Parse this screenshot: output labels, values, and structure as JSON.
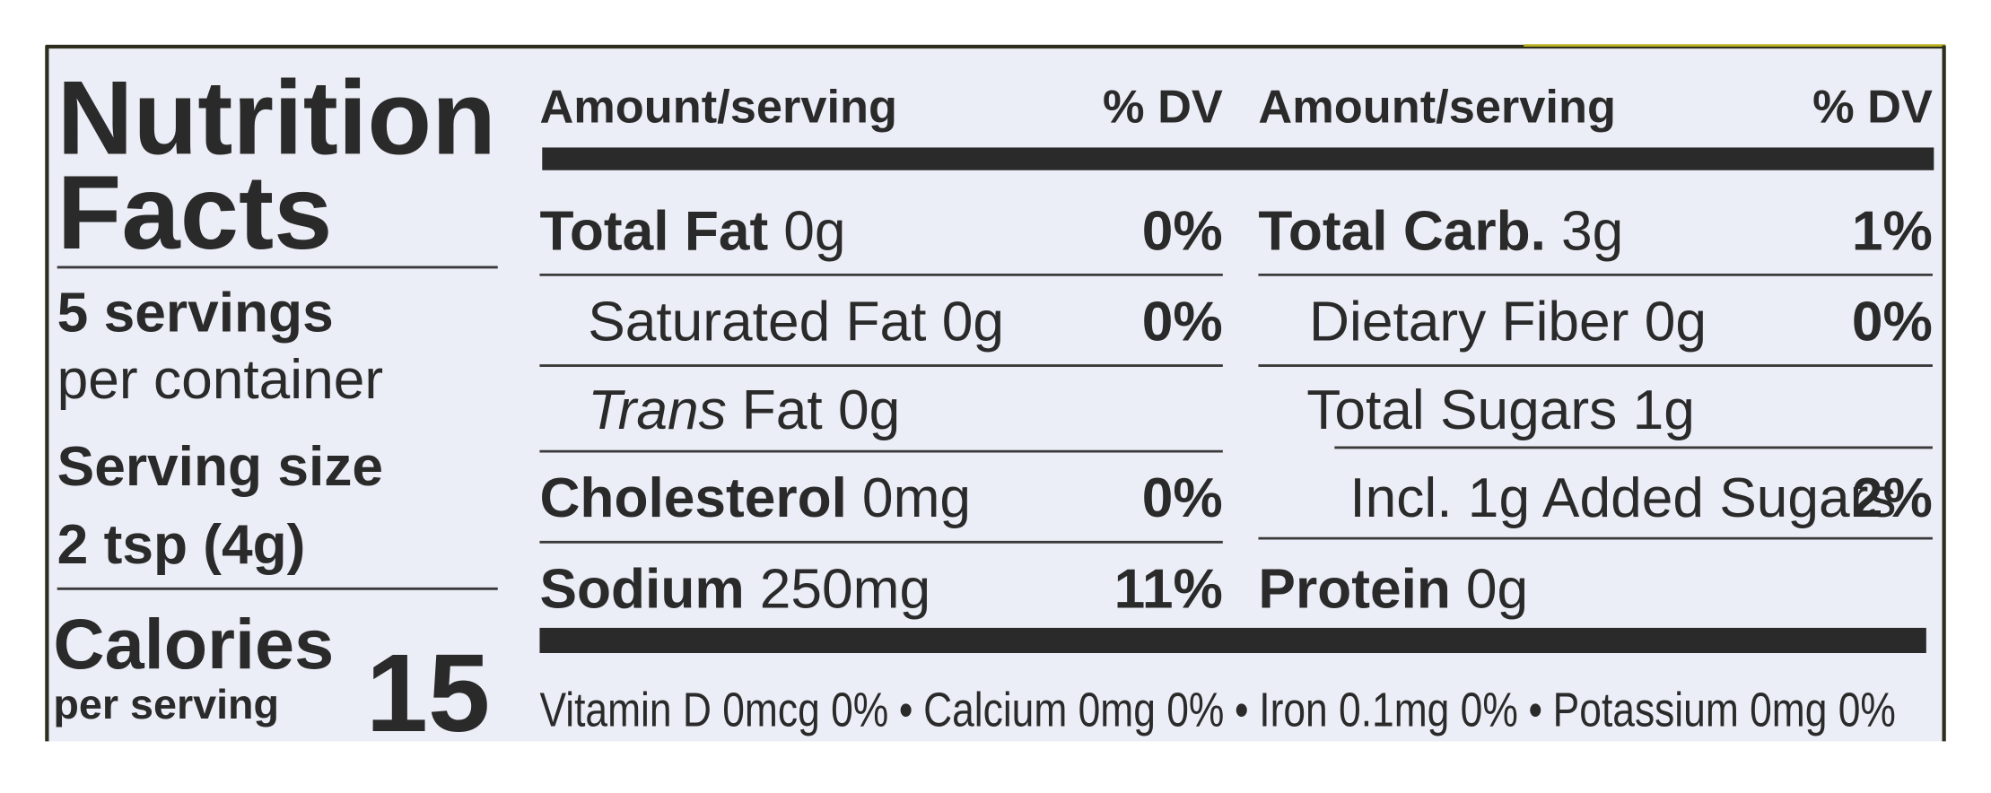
{
  "title": [
    "Nutrition",
    "Facts"
  ],
  "servings": [
    "5 servings",
    "per container"
  ],
  "serving_size": {
    "label": "Serving size",
    "value": "2 tsp (4g)"
  },
  "calories": {
    "label": "Calories",
    "sublabel": "per serving",
    "value": "15"
  },
  "columns": [
    {
      "header": {
        "amount": "Amount/serving",
        "dv": "% DV"
      },
      "rows": [
        {
          "name": "Total Fat",
          "amount": "0g",
          "dv": "0%"
        },
        {
          "text": "Saturated Fat 0g",
          "dv": "0%"
        },
        {
          "italic": "Trans",
          "text": "Fat 0g"
        },
        {
          "name": "Cholesterol",
          "amount": "0mg",
          "dv": "0%"
        },
        {
          "name": "Sodium",
          "amount": "250mg",
          "dv": "11%"
        }
      ]
    },
    {
      "header": {
        "amount": "Amount/serving",
        "dv": "% DV"
      },
      "rows": [
        {
          "name": "Total Carb.",
          "amount": "3g",
          "dv": "1%"
        },
        {
          "text": "Dietary Fiber 0g",
          "dv": "0%"
        },
        {
          "text": "Total Sugars 1g"
        },
        {
          "text": "Incl. 1g Added Sugars",
          "dv": "2%"
        },
        {
          "name": "Protein",
          "amount": "0g"
        }
      ]
    }
  ],
  "footer": {
    "items": [
      "Vitamin D 0mcg 0%",
      "Calcium 0mg 0%",
      "Iron 0.1mg 0%",
      "Potassium 0mg 0%"
    ],
    "separator": "•"
  }
}
